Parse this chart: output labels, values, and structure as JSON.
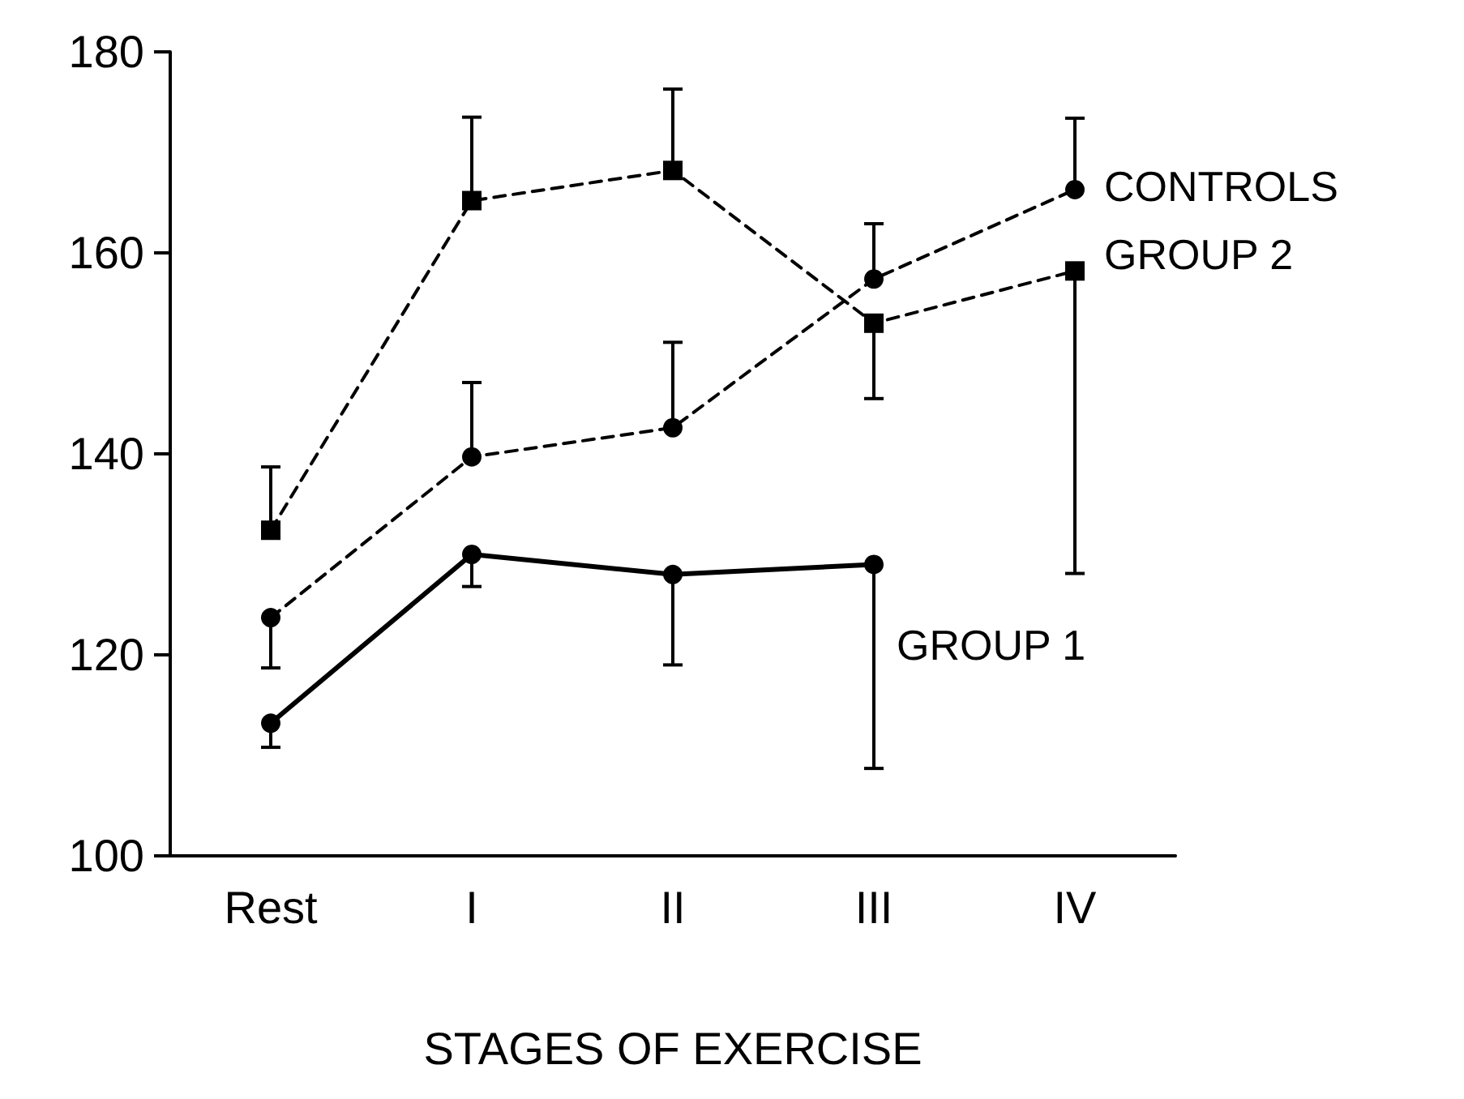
{
  "chart_data": {
    "type": "line",
    "xlabel": "STAGES OF EXERCISE",
    "categories": [
      "Rest",
      "I",
      "II",
      "III",
      "IV"
    ],
    "series": [
      {
        "name": "CONTROLS",
        "color": "#000000",
        "marker": "circle",
        "line_style": "dashed",
        "values": [
          123.7,
          139.7,
          142.6,
          157.4,
          166.3
        ],
        "errors": [
          [
            118.7,
            123.7
          ],
          [
            139.7,
            147.1
          ],
          [
            142.6,
            151.1
          ],
          [
            157.4,
            162.9
          ],
          [
            166.3,
            173.4
          ]
        ]
      },
      {
        "name": "GROUP 2",
        "color": "#000000",
        "marker": "square",
        "line_style": "dashed",
        "values": [
          132.4,
          165.2,
          168.2,
          153.0,
          158.2
        ],
        "errors": [
          [
            132.4,
            138.7
          ],
          [
            165.2,
            173.5
          ],
          [
            168.2,
            176.3
          ],
          [
            145.5,
            153.0
          ],
          [
            128.1,
            158.2
          ]
        ]
      },
      {
        "name": "GROUP 1",
        "color": "#000000",
        "marker": "circle",
        "line_style": "solid",
        "values": [
          113.2,
          130.0,
          128.0,
          129.0,
          null
        ],
        "errors": [
          [
            110.8,
            113.2
          ],
          [
            126.8,
            130.0
          ],
          [
            119.0,
            128.0
          ],
          [
            108.7,
            129.0
          ],
          null
        ]
      }
    ],
    "ylim": [
      100,
      180
    ],
    "yticks": [
      100,
      120,
      140,
      160,
      180
    ],
    "grid": false,
    "legend": false
  }
}
